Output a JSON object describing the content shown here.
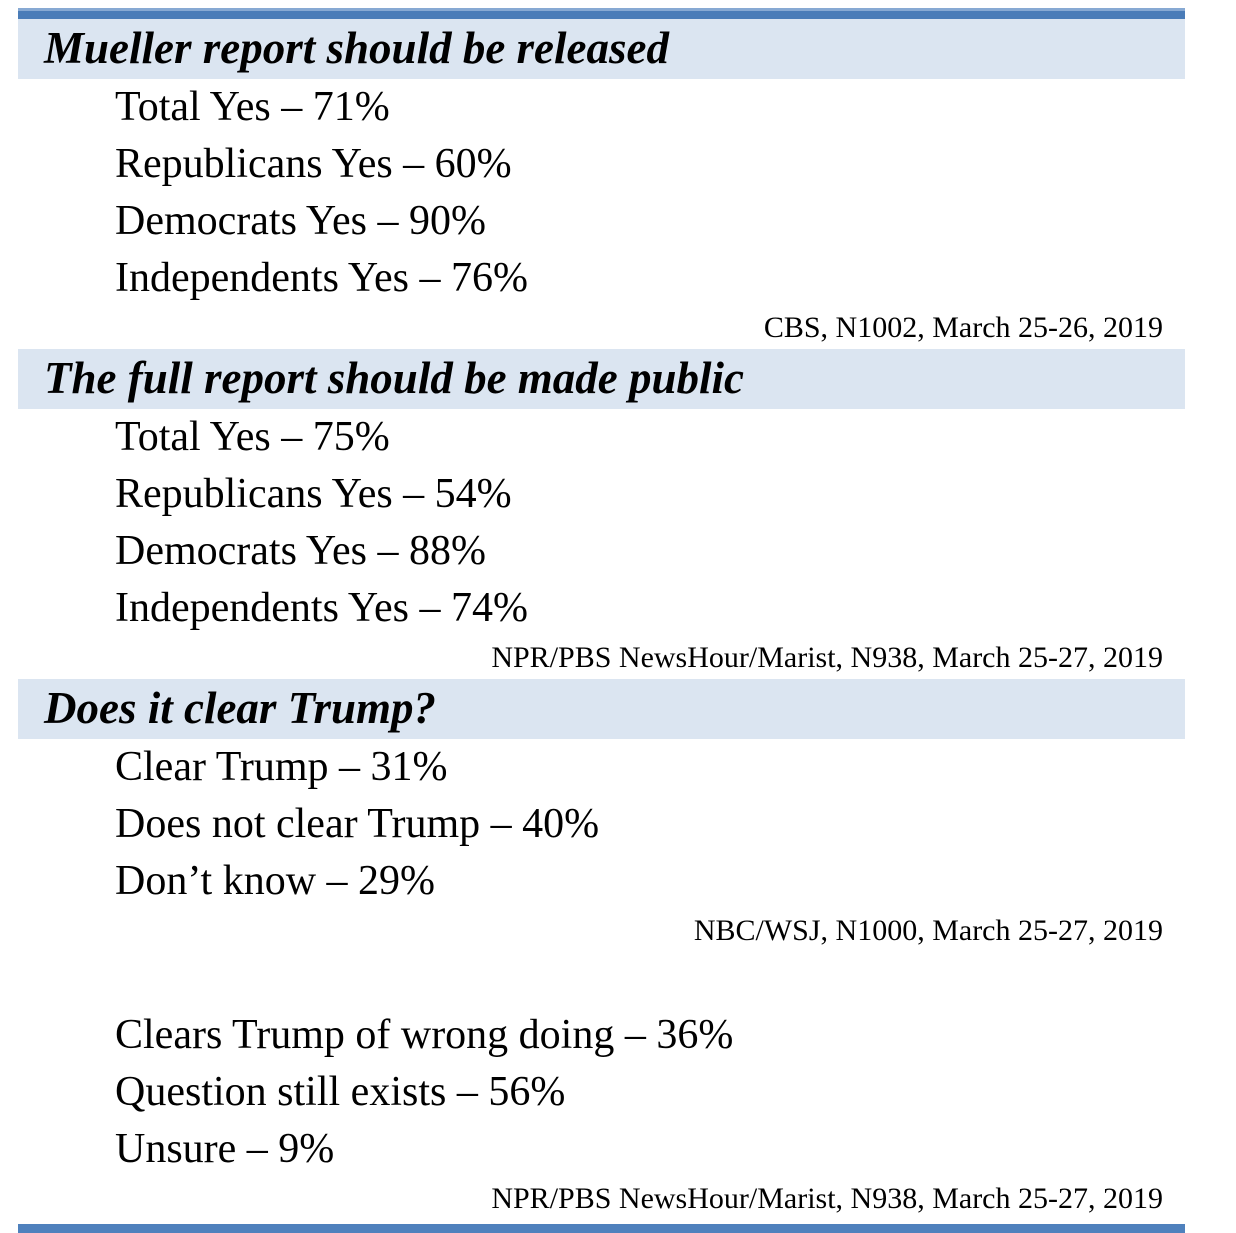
{
  "document": {
    "title": "Mueller report poll summary",
    "colors": {
      "accent_bar": "#4f81bd",
      "accent_bar_highlight": "#87a9d3",
      "heading_band": "#dbe5f1",
      "text": "#000000"
    },
    "sections": [
      {
        "heading": "Mueller report should be released",
        "groups": [
          {
            "lines": [
              "Total Yes – 71%",
              "Republicans Yes – 60%",
              "Democrats Yes – 90%",
              "Independents Yes – 76%"
            ],
            "source": "CBS, N1002, March 25-26, 2019"
          }
        ]
      },
      {
        "heading": "The full report should be made public",
        "groups": [
          {
            "lines": [
              "Total Yes – 75%",
              "Republicans Yes – 54%",
              "Democrats Yes – 88%",
              "Independents Yes – 74%"
            ],
            "source": "NPR/PBS NewsHour/Marist, N938, March 25-27, 2019"
          }
        ]
      },
      {
        "heading": "Does it clear Trump?",
        "groups": [
          {
            "lines": [
              "Clear Trump – 31%",
              "Does not clear Trump – 40%",
              "Don’t know – 29%"
            ],
            "source": "NBC/WSJ, N1000, March 25-27, 2019"
          },
          {
            "lines": [
              "Clears Trump of wrong doing – 36%",
              "Question still exists – 56%",
              "Unsure – 9%"
            ],
            "source": "NPR/PBS NewsHour/Marist, N938, March 25-27, 2019"
          }
        ]
      }
    ]
  }
}
